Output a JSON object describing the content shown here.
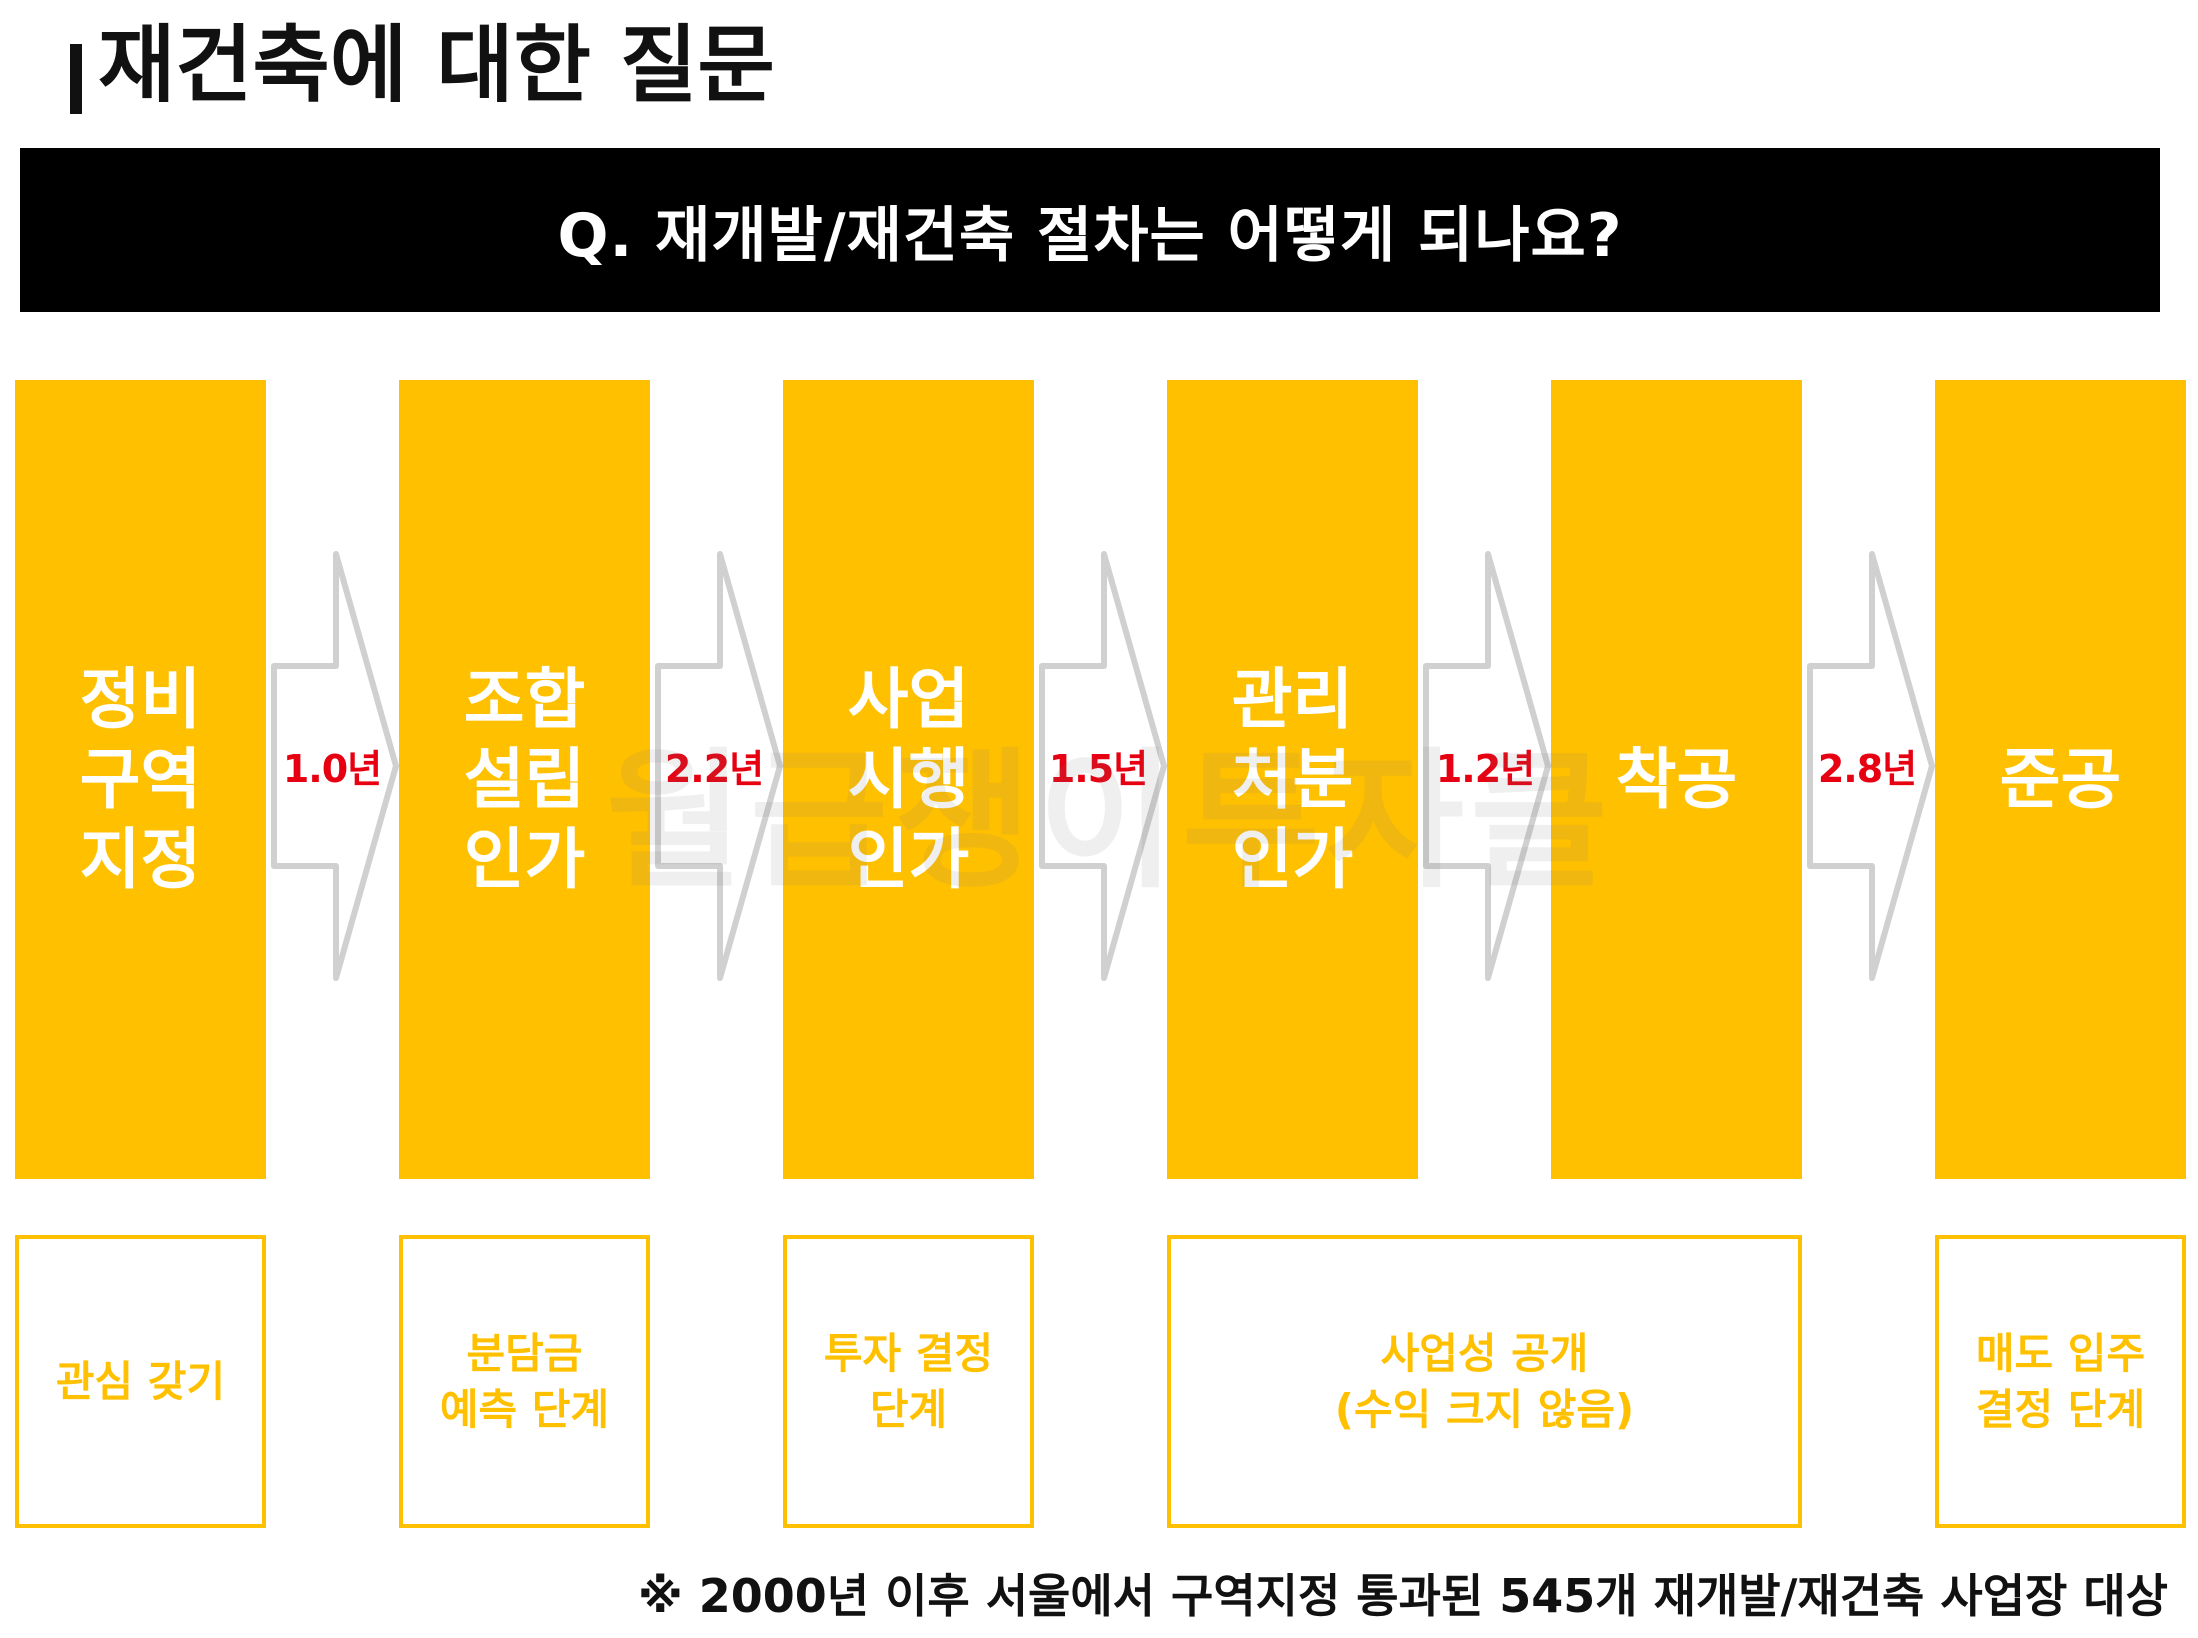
{
  "header": {
    "title": "재건축에 대한 질문"
  },
  "banner": {
    "question": "Q. 재개발/재건축 절차는 어떻게 되나요?"
  },
  "stages": [
    {
      "label": "정비\n구역\n지정"
    },
    {
      "label": "조합\n설립\n인가"
    },
    {
      "label": "사업\n시행\n인가"
    },
    {
      "label": "관리\n처분\n인가"
    },
    {
      "label": "착공"
    },
    {
      "label": "준공"
    }
  ],
  "durations": [
    "1.0년",
    "2.2년",
    "1.5년",
    "1.2년",
    "2.8년"
  ],
  "notes": [
    "관심 갖기",
    "분담금\n예측 단계",
    "투자 결정\n단계",
    "사업성 공개\n(수익 크지 않음)",
    "매도 입주\n결정 단계"
  ],
  "watermark": "월급쟁이투자클",
  "footnote": "※ 2000년 이후 서울에서 구역지정 통과된 545개 재개발/재건축 사업장 대상",
  "colors": {
    "stage": "#FFC000",
    "duration": "#e60012",
    "banner": "#000000"
  }
}
